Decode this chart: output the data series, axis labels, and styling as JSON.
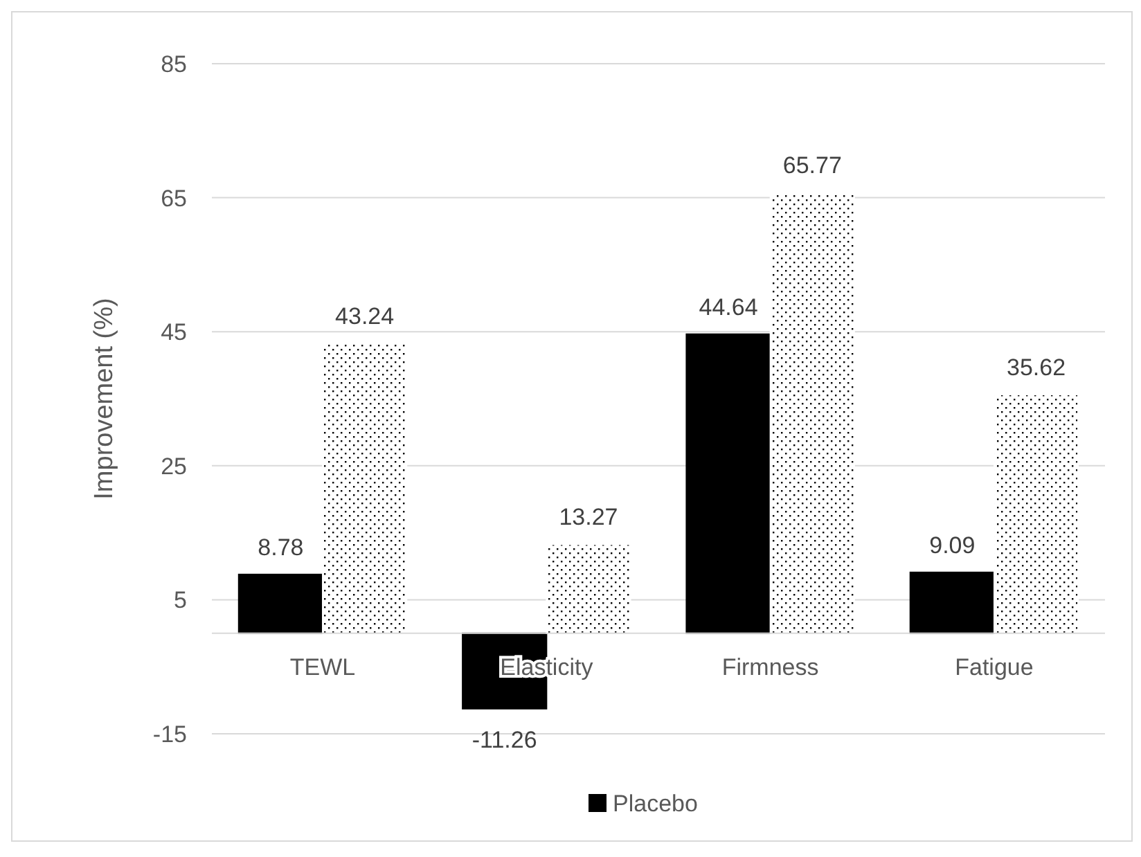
{
  "chart_data": {
    "type": "bar",
    "ylabel": "Improvement (%)",
    "categories": [
      "TEWL",
      "Elasticity",
      "Firmness",
      "Fatigue"
    ],
    "series": [
      {
        "name": "Placebo",
        "color": "#000000",
        "values": [
          8.78,
          -11.26,
          44.64,
          9.09
        ]
      },
      {
        "color": "#ffffff",
        "values": [
          43.24,
          13.27,
          65.77,
          35.62
        ]
      }
    ],
    "ylim": [
      -15,
      85
    ],
    "yticks": [
      -15,
      5,
      25,
      45,
      65,
      85
    ],
    "grid": "y",
    "legend": "bottom",
    "data_labels": true
  }
}
